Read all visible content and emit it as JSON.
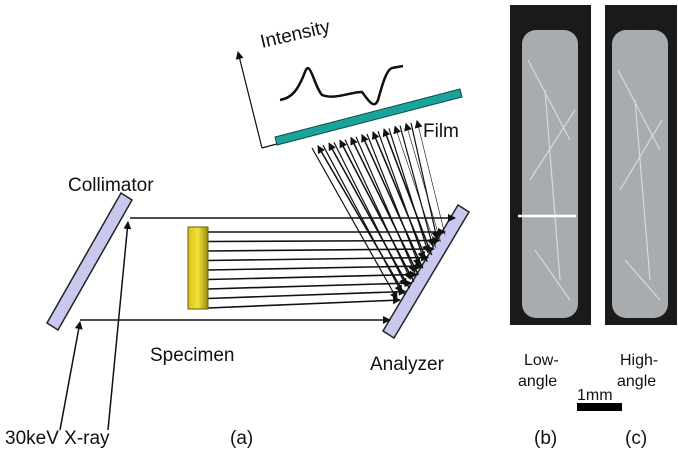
{
  "intensity": "Intensity",
  "film": "Film",
  "collimator": "Collimator",
  "specimen": "Specimen",
  "analyzer": "Analyzer",
  "source": "30keV X-ray",
  "panel_a": "(a)",
  "low_angle": [
    "Low-",
    "angle"
  ],
  "high_angle": [
    "High-",
    "angle"
  ],
  "scale": "1mm",
  "panel_b": "(b)",
  "panel_c": "(c)"
}
